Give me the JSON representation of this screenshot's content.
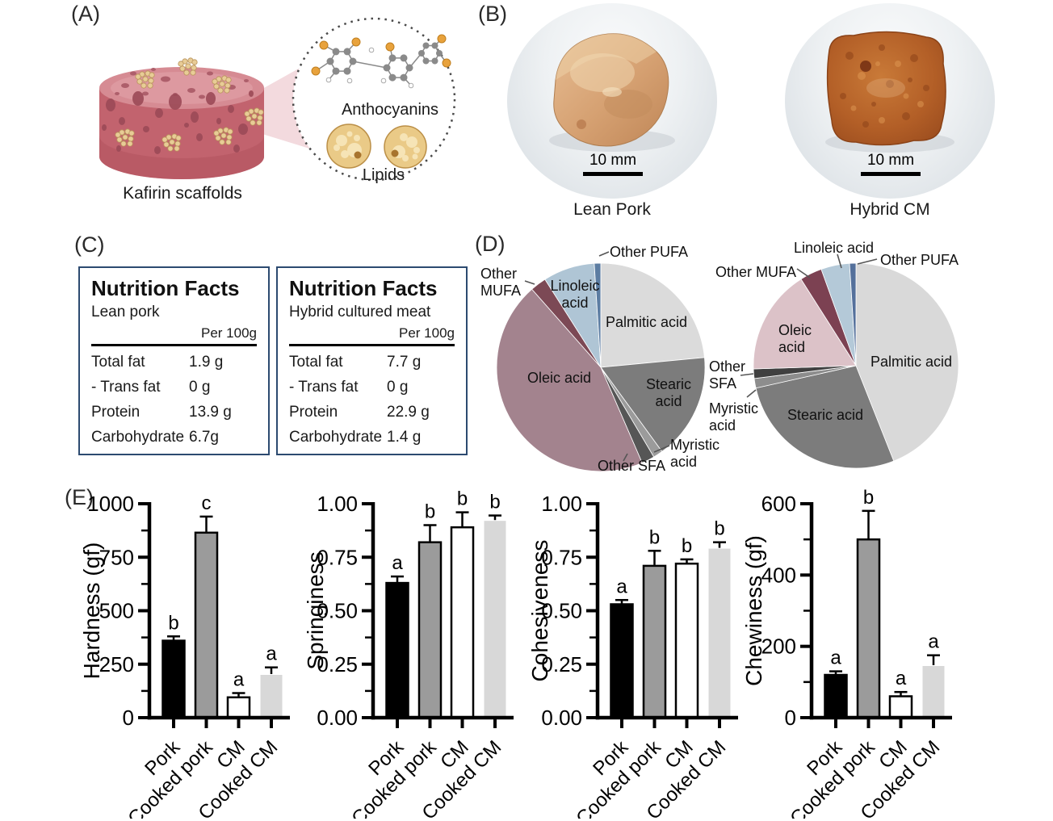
{
  "figure": {
    "panelA": {
      "label": "(A)",
      "anthocyanins_caption": "Anthocyanins",
      "lipids_caption": "Lipids",
      "scaffold_caption": "Kafirin scaffolds"
    },
    "panelB": {
      "label": "(B)",
      "photos": [
        {
          "caption": "Lean Pork",
          "scalebar": "10 mm"
        },
        {
          "caption": "Hybrid CM",
          "scalebar": "10 mm"
        }
      ]
    },
    "panelC": {
      "label": "(C)",
      "tables": [
        {
          "title": "Nutrition Facts",
          "subtitle": "Lean pork",
          "unit_header": "Per 100g",
          "rows": [
            {
              "label": "Total fat",
              "value": "1.9 g"
            },
            {
              "label": "- Trans fat",
              "value": "0 g"
            },
            {
              "label": "Protein",
              "value": "13.9 g"
            },
            {
              "label": "Carbohydrate",
              "value": "6.7g"
            }
          ]
        },
        {
          "title": "Nutrition Facts",
          "subtitle": "Hybrid cultured meat",
          "unit_header": "Per 100g",
          "rows": [
            {
              "label": "Total fat",
              "value": "7.7 g"
            },
            {
              "label": "- Trans fat",
              "value": "0 g"
            },
            {
              "label": "Protein",
              "value": "22.9 g"
            },
            {
              "label": "Carbohydrate",
              "value": "1.4 g"
            }
          ]
        }
      ]
    },
    "panelD": {
      "label": "(D)"
    },
    "panelE": {
      "label": "(E)",
      "bar_fills": [
        "#000000",
        "#9b9b9b",
        "#ffffff",
        "#d8d8d8"
      ],
      "bar_strokes": [
        "#000000",
        "#000000",
        "#000000",
        "none"
      ]
    }
  },
  "chart_data": [
    {
      "type": "pie",
      "position": "left",
      "start": "12-oclock",
      "direction": "clockwise",
      "slices": [
        {
          "label": "Palmitic acid",
          "value": 23.5,
          "color": "#dbdbdb"
        },
        {
          "label": "Stearic acid",
          "value": 16.5,
          "color": "#7c7c7c"
        },
        {
          "label": "Myristic acid",
          "value": 1.5,
          "color": "#9b9b9b"
        },
        {
          "label": "Other SFA",
          "value": 2.0,
          "color": "#565656"
        },
        {
          "label": "Oleic acid",
          "value": 45.0,
          "color": "#a3838e"
        },
        {
          "label": "Other MUFA",
          "value": 2.5,
          "color": "#7c4955"
        },
        {
          "label": "Linoleic acid",
          "value": 8.0,
          "color": "#afc5d5"
        },
        {
          "label": "Other PUFA",
          "value": 1.0,
          "color": "#5c7da2"
        }
      ]
    },
    {
      "type": "pie",
      "position": "right",
      "start": "12-oclock",
      "direction": "clockwise",
      "slices": [
        {
          "label": "Palmitic acid",
          "value": 44.0,
          "color": "#d9d9d9"
        },
        {
          "label": "Stearic acid",
          "value": 27.5,
          "color": "#7c7c7c"
        },
        {
          "label": "Myristic acid",
          "value": 1.5,
          "color": "#8d8d8d"
        },
        {
          "label": "Other SFA",
          "value": 1.5,
          "color": "#404040"
        },
        {
          "label": "Oleic acid",
          "value": 16.5,
          "color": "#dcc2c8"
        },
        {
          "label": "Other MUFA",
          "value": 3.5,
          "color": "#7c4152"
        },
        {
          "label": "Linoleic acid",
          "value": 4.5,
          "color": "#b4c9d8"
        },
        {
          "label": "Other PUFA",
          "value": 1.0,
          "color": "#54709b"
        }
      ]
    },
    {
      "type": "bar",
      "ylabel": "Hardness (gf)",
      "ylim": [
        0,
        1000
      ],
      "yticks": [
        "0",
        "250",
        "500",
        "750",
        "1000"
      ],
      "categories": [
        "Pork",
        "Cooked pork",
        "CM",
        "Cooked CM"
      ],
      "values": [
        360,
        865,
        95,
        200
      ],
      "errors": [
        20,
        75,
        20,
        35
      ],
      "sig_letters": [
        "b",
        "c",
        "a",
        "a"
      ]
    },
    {
      "type": "bar",
      "ylabel": "Springiness",
      "ylim": [
        0,
        1.0
      ],
      "yticks": [
        "0.00",
        "0.25",
        "0.50",
        "0.75",
        "1.00"
      ],
      "categories": [
        "Pork",
        "Cooked pork",
        "CM",
        "Cooked CM"
      ],
      "values": [
        0.63,
        0.82,
        0.89,
        0.92
      ],
      "errors": [
        0.03,
        0.08,
        0.07,
        0.025
      ],
      "sig_letters": [
        "a",
        "b",
        "b",
        "b"
      ]
    },
    {
      "type": "bar",
      "ylabel": "Cohesiveness",
      "ylim": [
        0,
        1.0
      ],
      "yticks": [
        "0.00",
        "0.25",
        "0.50",
        "0.75",
        "1.00"
      ],
      "categories": [
        "Pork",
        "Cooked pork",
        "CM",
        "Cooked CM"
      ],
      "values": [
        0.53,
        0.71,
        0.72,
        0.79
      ],
      "errors": [
        0.02,
        0.07,
        0.02,
        0.03
      ],
      "sig_letters": [
        "a",
        "b",
        "b",
        "b"
      ]
    },
    {
      "type": "bar",
      "ylabel": "Chewiness (gf)",
      "ylim": [
        0,
        600
      ],
      "yticks": [
        "0",
        "200",
        "400",
        "600"
      ],
      "categories": [
        "Pork",
        "Cooked pork",
        "CM",
        "Cooked CM"
      ],
      "values": [
        120,
        500,
        60,
        145
      ],
      "errors": [
        10,
        80,
        12,
        30
      ],
      "sig_letters": [
        "a",
        "b",
        "a",
        "a"
      ]
    }
  ]
}
